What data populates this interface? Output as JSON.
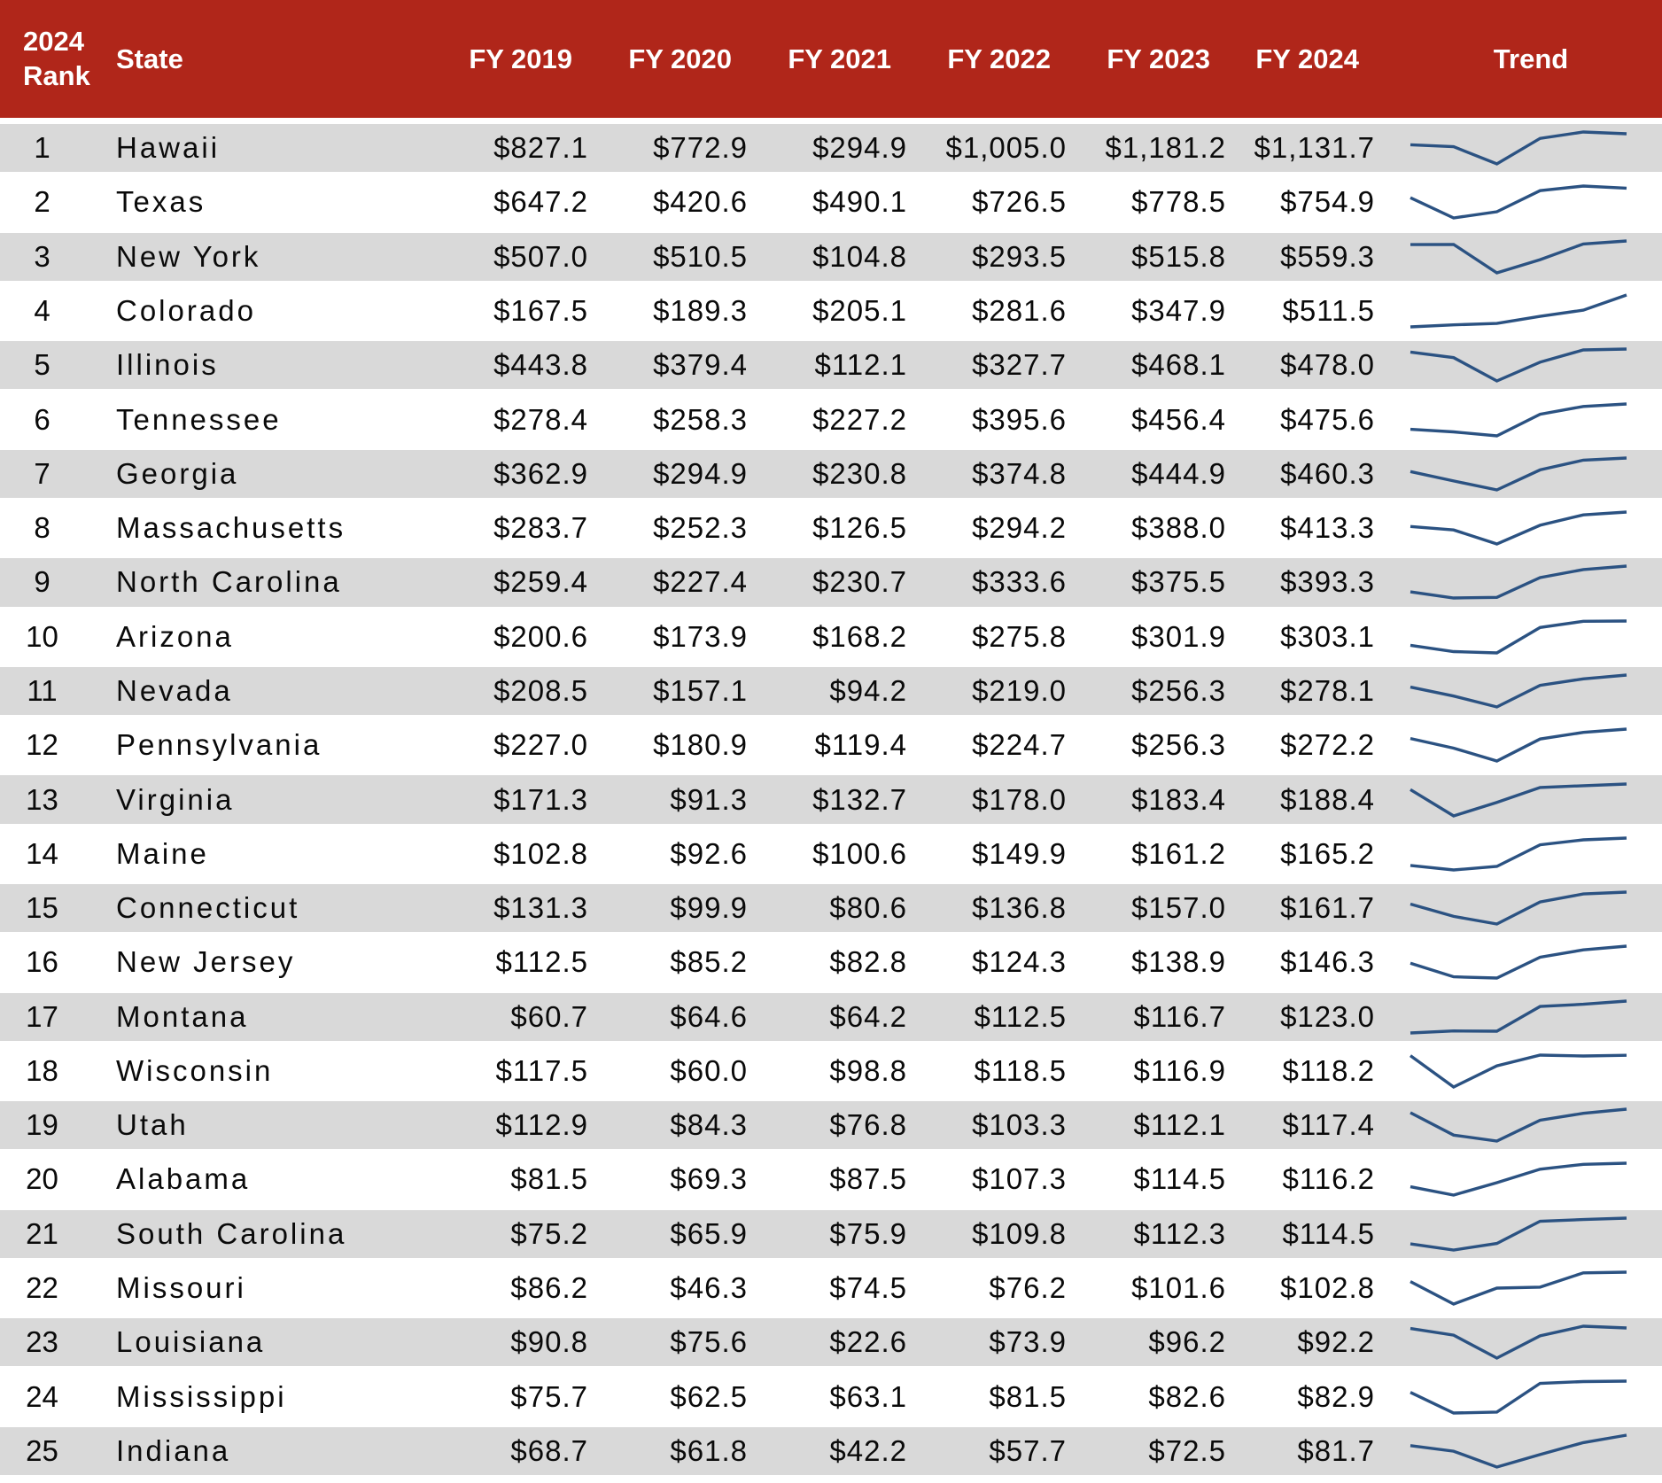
{
  "header": {
    "rank_line1": "2024",
    "rank_line2": "Rank",
    "state_label": "State",
    "trend_label": "Trend"
  },
  "colors": {
    "header_bg": "#B0261A",
    "header_text": "#FFFFFF",
    "row_odd_bg": "#D9D9D9",
    "row_even_bg": "#FFFFFF",
    "body_text": "#0A0A0A",
    "sparkline": "#2B5282"
  },
  "chart_data": {
    "type": "table",
    "categories": [
      "FY 2019",
      "FY 2020",
      "FY 2021",
      "FY 2022",
      "FY 2023",
      "FY 2024"
    ],
    "trend_type": "line",
    "rows": [
      {
        "rank": "1",
        "state": "Hawaii",
        "values": [
          "$827.1",
          "$772.9",
          "$294.9",
          "$1,005.0",
          "$1,181.2",
          "$1,131.7"
        ],
        "trend": [
          827.1,
          772.9,
          294.9,
          1005.0,
          1181.2,
          1131.7
        ]
      },
      {
        "rank": "2",
        "state": "Texas",
        "values": [
          "$647.2",
          "$420.6",
          "$490.1",
          "$726.5",
          "$778.5",
          "$754.9"
        ],
        "trend": [
          647.2,
          420.6,
          490.1,
          726.5,
          778.5,
          754.9
        ]
      },
      {
        "rank": "3",
        "state": "New York",
        "values": [
          "$507.0",
          "$510.5",
          "$104.8",
          "$293.5",
          "$515.8",
          "$559.3"
        ],
        "trend": [
          507.0,
          510.5,
          104.8,
          293.5,
          515.8,
          559.3
        ]
      },
      {
        "rank": "4",
        "state": "Colorado",
        "values": [
          "$167.5",
          "$189.3",
          "$205.1",
          "$281.6",
          "$347.9",
          "$511.5"
        ],
        "trend": [
          167.5,
          189.3,
          205.1,
          281.6,
          347.9,
          511.5
        ]
      },
      {
        "rank": "5",
        "state": "Illinois",
        "values": [
          "$443.8",
          "$379.4",
          "$112.1",
          "$327.7",
          "$468.1",
          "$478.0"
        ],
        "trend": [
          443.8,
          379.4,
          112.1,
          327.7,
          468.1,
          478.0
        ]
      },
      {
        "rank": "6",
        "state": "Tennessee",
        "values": [
          "$278.4",
          "$258.3",
          "$227.2",
          "$395.6",
          "$456.4",
          "$475.6"
        ],
        "trend": [
          278.4,
          258.3,
          227.2,
          395.6,
          456.4,
          475.6
        ]
      },
      {
        "rank": "7",
        "state": "Georgia",
        "values": [
          "$362.9",
          "$294.9",
          "$230.8",
          "$374.8",
          "$444.9",
          "$460.3"
        ],
        "trend": [
          362.9,
          294.9,
          230.8,
          374.8,
          444.9,
          460.3
        ]
      },
      {
        "rank": "8",
        "state": "Massachusetts",
        "values": [
          "$283.7",
          "$252.3",
          "$126.5",
          "$294.2",
          "$388.0",
          "$413.3"
        ],
        "trend": [
          283.7,
          252.3,
          126.5,
          294.2,
          388.0,
          413.3
        ]
      },
      {
        "rank": "9",
        "state": "North Carolina",
        "values": [
          "$259.4",
          "$227.4",
          "$230.7",
          "$333.6",
          "$375.5",
          "$393.3"
        ],
        "trend": [
          259.4,
          227.4,
          230.7,
          333.6,
          375.5,
          393.3
        ]
      },
      {
        "rank": "10",
        "state": "Arizona",
        "values": [
          "$200.6",
          "$173.9",
          "$168.2",
          "$275.8",
          "$301.9",
          "$303.1"
        ],
        "trend": [
          200.6,
          173.9,
          168.2,
          275.8,
          301.9,
          303.1
        ]
      },
      {
        "rank": "11",
        "state": "Nevada",
        "values": [
          "$208.5",
          "$157.1",
          "$94.2",
          "$219.0",
          "$256.3",
          "$278.1"
        ],
        "trend": [
          208.5,
          157.1,
          94.2,
          219.0,
          256.3,
          278.1
        ]
      },
      {
        "rank": "12",
        "state": "Pennsylvania",
        "values": [
          "$227.0",
          "$180.9",
          "$119.4",
          "$224.7",
          "$256.3",
          "$272.2"
        ],
        "trend": [
          227.0,
          180.9,
          119.4,
          224.7,
          256.3,
          272.2
        ]
      },
      {
        "rank": "13",
        "state": "Virginia",
        "values": [
          "$171.3",
          "$91.3",
          "$132.7",
          "$178.0",
          "$183.4",
          "$188.4"
        ],
        "trend": [
          171.3,
          91.3,
          132.7,
          178.0,
          183.4,
          188.4
        ]
      },
      {
        "rank": "14",
        "state": "Maine",
        "values": [
          "$102.8",
          "$92.6",
          "$100.6",
          "$149.9",
          "$161.2",
          "$165.2"
        ],
        "trend": [
          102.8,
          92.6,
          100.6,
          149.9,
          161.2,
          165.2
        ]
      },
      {
        "rank": "15",
        "state": "Connecticut",
        "values": [
          "$131.3",
          "$99.9",
          "$80.6",
          "$136.8",
          "$157.0",
          "$161.7"
        ],
        "trend": [
          131.3,
          99.9,
          80.6,
          136.8,
          157.0,
          161.7
        ]
      },
      {
        "rank": "16",
        "state": "New Jersey",
        "values": [
          "$112.5",
          "$85.2",
          "$82.8",
          "$124.3",
          "$138.9",
          "$146.3"
        ],
        "trend": [
          112.5,
          85.2,
          82.8,
          124.3,
          138.9,
          146.3
        ]
      },
      {
        "rank": "17",
        "state": "Montana",
        "values": [
          "$60.7",
          "$64.6",
          "$64.2",
          "$112.5",
          "$116.7",
          "$123.0"
        ],
        "trend": [
          60.7,
          64.6,
          64.2,
          112.5,
          116.7,
          123.0
        ]
      },
      {
        "rank": "18",
        "state": "Wisconsin",
        "values": [
          "$117.5",
          "$60.0",
          "$98.8",
          "$118.5",
          "$116.9",
          "$118.2"
        ],
        "trend": [
          117.5,
          60.0,
          98.8,
          118.5,
          116.9,
          118.2
        ]
      },
      {
        "rank": "19",
        "state": "Utah",
        "values": [
          "$112.9",
          "$84.3",
          "$76.8",
          "$103.3",
          "$112.1",
          "$117.4"
        ],
        "trend": [
          112.9,
          84.3,
          76.8,
          103.3,
          112.1,
          117.4
        ]
      },
      {
        "rank": "20",
        "state": "Alabama",
        "values": [
          "$81.5",
          "$69.3",
          "$87.5",
          "$107.3",
          "$114.5",
          "$116.2"
        ],
        "trend": [
          81.5,
          69.3,
          87.5,
          107.3,
          114.5,
          116.2
        ]
      },
      {
        "rank": "21",
        "state": "South Carolina",
        "values": [
          "$75.2",
          "$65.9",
          "$75.9",
          "$109.8",
          "$112.3",
          "$114.5"
        ],
        "trend": [
          75.2,
          65.9,
          75.9,
          109.8,
          112.3,
          114.5
        ]
      },
      {
        "rank": "22",
        "state": "Missouri",
        "values": [
          "$86.2",
          "$46.3",
          "$74.5",
          "$76.2",
          "$101.6",
          "$102.8"
        ],
        "trend": [
          86.2,
          46.3,
          74.5,
          76.2,
          101.6,
          102.8
        ]
      },
      {
        "rank": "23",
        "state": "Louisiana",
        "values": [
          "$90.8",
          "$75.6",
          "$22.6",
          "$73.9",
          "$96.2",
          "$92.2"
        ],
        "trend": [
          90.8,
          75.6,
          22.6,
          73.9,
          96.2,
          92.2
        ]
      },
      {
        "rank": "24",
        "state": "Mississippi",
        "values": [
          "$75.7",
          "$62.5",
          "$63.1",
          "$81.5",
          "$82.6",
          "$82.9"
        ],
        "trend": [
          75.7,
          62.5,
          63.1,
          81.5,
          82.6,
          82.9
        ]
      },
      {
        "rank": "25",
        "state": "Indiana",
        "values": [
          "$68.7",
          "$61.8",
          "$42.2",
          "$57.7",
          "$72.5",
          "$81.7"
        ],
        "trend": [
          68.7,
          61.8,
          42.2,
          57.7,
          72.5,
          81.7
        ]
      }
    ]
  }
}
